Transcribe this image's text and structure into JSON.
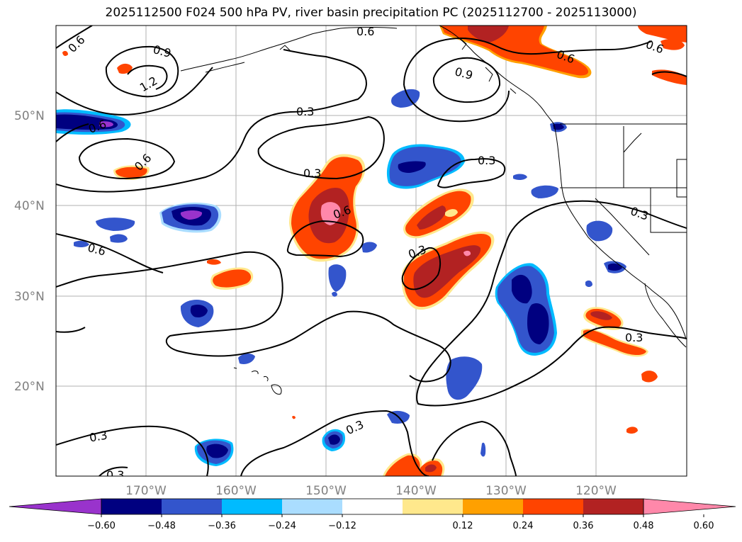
{
  "title": "2025112500 F024 500 hPa PV, river basin precipitation PC (2025112700 - 2025113000)",
  "lat_labels": [
    "50°N",
    "40°N",
    "30°N",
    "20°N"
  ],
  "lon_labels": [
    "170°W",
    "160°W",
    "150°W",
    "140°W",
    "130°W",
    "120°W"
  ],
  "contour_labels": [
    "0.6",
    "0.6",
    "0.6",
    "0.9",
    "0.9",
    "1.2",
    "0.6",
    "0.3",
    "0.3",
    "0.6",
    "0.3",
    "0.3",
    "0.3",
    "0.3",
    "0.3",
    "0.6",
    "0.3",
    "0.3",
    "0.6",
    "0.6"
  ],
  "colorbar": {
    "ticks": [
      "−0.60",
      "−0.48",
      "−0.36",
      "−0.24",
      "−0.12",
      "0.12",
      "0.24",
      "0.36",
      "0.48",
      "0.60"
    ],
    "levels": [
      -0.72,
      -0.6,
      -0.48,
      -0.36,
      -0.24,
      -0.12,
      0.12,
      0.24,
      0.36,
      0.48,
      0.6,
      0.72
    ],
    "colors": [
      "#9933cc",
      "#000080",
      "#3355cc",
      "#00bbff",
      "#aaddff",
      "#ffffff",
      "#ffe88c",
      "#ffa000",
      "#ff4400",
      "#b22222",
      "#ff88aa"
    ]
  }
}
